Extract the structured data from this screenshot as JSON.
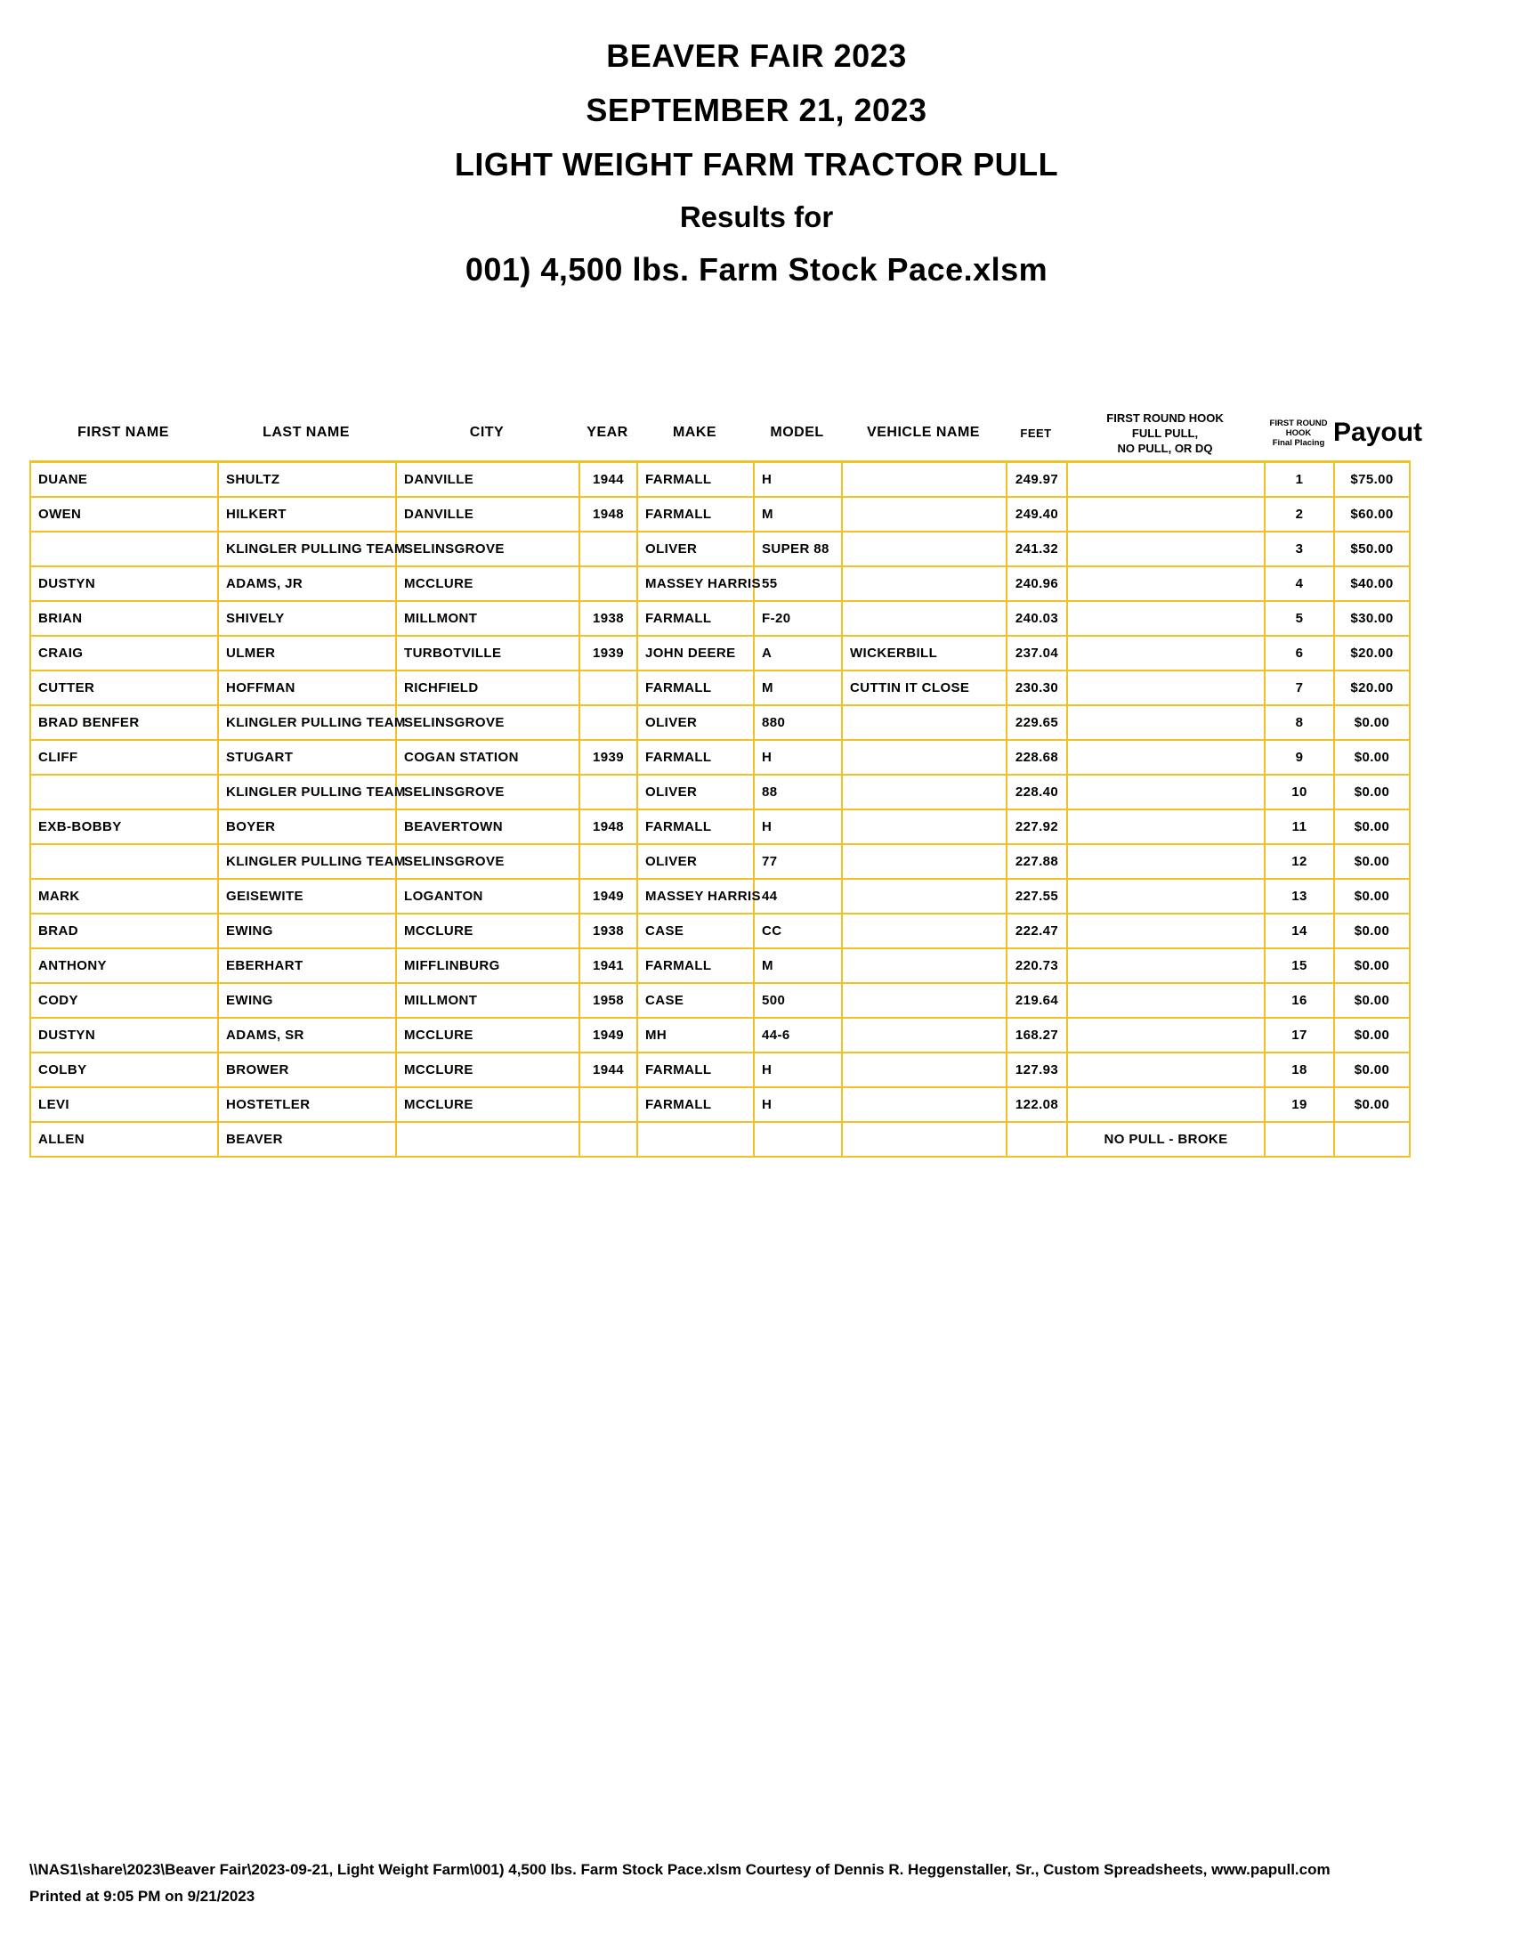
{
  "title": {
    "event": "BEAVER FAIR 2023",
    "date": "SEPTEMBER 21, 2023",
    "class_name": "LIGHT WEIGHT FARM TRACTOR PULL",
    "results_for": "Results for",
    "file": "001) 4,500 lbs. Farm Stock Pace.xlsm"
  },
  "colors": {
    "border_gold": "#F2C126",
    "text": "#000000",
    "background": "#FFFFFF"
  },
  "table": {
    "headers": {
      "first_name": "FIRST NAME",
      "last_name": "LAST NAME",
      "city": "CITY",
      "year": "YEAR",
      "make": "MAKE",
      "model": "MODEL",
      "vehicle_name": "VEHICLE NAME",
      "feet": "FEET",
      "hook_lines": [
        "FIRST ROUND HOOK",
        "FULL PULL,",
        "NO PULL, OR DQ"
      ],
      "placing_lines": [
        "FIRST ROUND",
        "HOOK",
        "Final Placing"
      ],
      "payout": "Payout"
    },
    "rows": [
      {
        "first_name": "DUANE",
        "last_name": "SHULTZ",
        "city": "DANVILLE",
        "year": "1944",
        "make": "FARMALL",
        "model": "H",
        "vehicle_name": "",
        "feet": "249.97",
        "hook": "",
        "placing": "1",
        "payout": "$75.00"
      },
      {
        "first_name": "OWEN",
        "last_name": "HILKERT",
        "city": "DANVILLE",
        "year": "1948",
        "make": "FARMALL",
        "model": "M",
        "vehicle_name": "",
        "feet": "249.40",
        "hook": "",
        "placing": "2",
        "payout": "$60.00"
      },
      {
        "first_name": "",
        "last_name": "KLINGLER PULLING TEAM",
        "city": "SELINSGROVE",
        "year": "",
        "make": "OLIVER",
        "model": "SUPER 88",
        "vehicle_name": "",
        "feet": "241.32",
        "hook": "",
        "placing": "3",
        "payout": "$50.00"
      },
      {
        "first_name": "DUSTYN",
        "last_name": "ADAMS, JR",
        "city": "MCCLURE",
        "year": "",
        "make": "MASSEY HARRIS",
        "model": "55",
        "vehicle_name": "",
        "feet": "240.96",
        "hook": "",
        "placing": "4",
        "payout": "$40.00"
      },
      {
        "first_name": "BRIAN",
        "last_name": "SHIVELY",
        "city": "MILLMONT",
        "year": "1938",
        "make": "FARMALL",
        "model": "F-20",
        "vehicle_name": "",
        "feet": "240.03",
        "hook": "",
        "placing": "5",
        "payout": "$30.00"
      },
      {
        "first_name": "CRAIG",
        "last_name": "ULMER",
        "city": "TURBOTVILLE",
        "year": "1939",
        "make": "JOHN DEERE",
        "model": "A",
        "vehicle_name": "WICKERBILL",
        "feet": "237.04",
        "hook": "",
        "placing": "6",
        "payout": "$20.00"
      },
      {
        "first_name": "CUTTER",
        "last_name": "HOFFMAN",
        "city": "RICHFIELD",
        "year": "",
        "make": "FARMALL",
        "model": "M",
        "vehicle_name": "CUTTIN IT CLOSE",
        "feet": "230.30",
        "hook": "",
        "placing": "7",
        "payout": "$20.00"
      },
      {
        "first_name": "BRAD BENFER",
        "last_name": "KLINGLER PULLING TEAM",
        "city": "SELINSGROVE",
        "year": "",
        "make": "OLIVER",
        "model": "880",
        "vehicle_name": "",
        "feet": "229.65",
        "hook": "",
        "placing": "8",
        "payout": "$0.00"
      },
      {
        "first_name": "CLIFF",
        "last_name": "STUGART",
        "city": "COGAN STATION",
        "year": "1939",
        "make": "FARMALL",
        "model": "H",
        "vehicle_name": "",
        "feet": "228.68",
        "hook": "",
        "placing": "9",
        "payout": "$0.00"
      },
      {
        "first_name": "",
        "last_name": "KLINGLER PULLING TEAM",
        "city": "SELINSGROVE",
        "year": "",
        "make": "OLIVER",
        "model": "88",
        "vehicle_name": "",
        "feet": "228.40",
        "hook": "",
        "placing": "10",
        "payout": "$0.00"
      },
      {
        "first_name": "EXB-BOBBY",
        "last_name": "BOYER",
        "city": "BEAVERTOWN",
        "year": "1948",
        "make": "FARMALL",
        "model": "H",
        "vehicle_name": "",
        "feet": "227.92",
        "hook": "",
        "placing": "11",
        "payout": "$0.00"
      },
      {
        "first_name": "",
        "last_name": "KLINGLER PULLING TEAM",
        "city": "SELINSGROVE",
        "year": "",
        "make": "OLIVER",
        "model": "77",
        "vehicle_name": "",
        "feet": "227.88",
        "hook": "",
        "placing": "12",
        "payout": "$0.00"
      },
      {
        "first_name": "MARK",
        "last_name": "GEISEWITE",
        "city": "LOGANTON",
        "year": "1949",
        "make": "MASSEY HARRIS",
        "model": "44",
        "vehicle_name": "",
        "feet": "227.55",
        "hook": "",
        "placing": "13",
        "payout": "$0.00"
      },
      {
        "first_name": "BRAD",
        "last_name": "EWING",
        "city": "MCCLURE",
        "year": "1938",
        "make": "CASE",
        "model": "CC",
        "vehicle_name": "",
        "feet": "222.47",
        "hook": "",
        "placing": "14",
        "payout": "$0.00"
      },
      {
        "first_name": "ANTHONY",
        "last_name": "EBERHART",
        "city": "MIFFLINBURG",
        "year": "1941",
        "make": "FARMALL",
        "model": "M",
        "vehicle_name": "",
        "feet": "220.73",
        "hook": "",
        "placing": "15",
        "payout": "$0.00"
      },
      {
        "first_name": "CODY",
        "last_name": "EWING",
        "city": "MILLMONT",
        "year": "1958",
        "make": "CASE",
        "model": "500",
        "vehicle_name": "",
        "feet": "219.64",
        "hook": "",
        "placing": "16",
        "payout": "$0.00"
      },
      {
        "first_name": "DUSTYN",
        "last_name": "ADAMS, SR",
        "city": "MCCLURE",
        "year": "1949",
        "make": "MH",
        "model": "44-6",
        "vehicle_name": "",
        "feet": "168.27",
        "hook": "",
        "placing": "17",
        "payout": "$0.00"
      },
      {
        "first_name": "COLBY",
        "last_name": "BROWER",
        "city": "MCCLURE",
        "year": "1944",
        "make": "FARMALL",
        "model": "H",
        "vehicle_name": "",
        "feet": "127.93",
        "hook": "",
        "placing": "18",
        "payout": "$0.00"
      },
      {
        "first_name": "LEVI",
        "last_name": "HOSTETLER",
        "city": "MCCLURE",
        "year": "",
        "make": "FARMALL",
        "model": "H",
        "vehicle_name": "",
        "feet": "122.08",
        "hook": "",
        "placing": "19",
        "payout": "$0.00"
      },
      {
        "first_name": "ALLEN",
        "last_name": "BEAVER",
        "city": "",
        "year": "",
        "make": "",
        "model": "",
        "vehicle_name": "",
        "feet": "",
        "hook": "NO PULL - BROKE",
        "placing": "",
        "payout": ""
      }
    ]
  },
  "footer": {
    "line1": "\\\\NAS1\\share\\2023\\Beaver Fair\\2023-09-21, Light Weight Farm\\001) 4,500 lbs. Farm Stock Pace.xlsm  Courtesy of Dennis R. Heggenstaller, Sr., Custom Spreadsheets, www.papull.com",
    "line2": "Printed at 9:05 PM on 9/21/2023"
  }
}
